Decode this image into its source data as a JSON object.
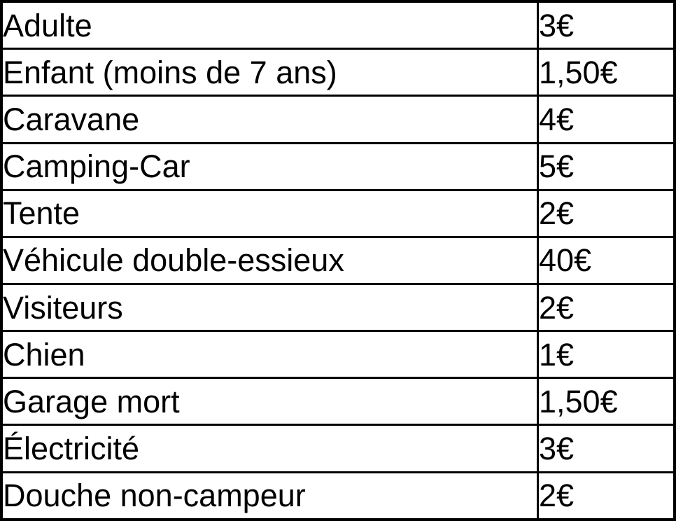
{
  "table": {
    "description": "Campsite price list (tarifs camping)",
    "currency_symbol": "€",
    "rows": [
      {
        "label": "Adulte",
        "price": "3€"
      },
      {
        "label": "Enfant (moins de 7 ans)",
        "price": "1,50€"
      },
      {
        "label": "Caravane",
        "price": "4€"
      },
      {
        "label": "Camping-Car",
        "price": "5€"
      },
      {
        "label": "Tente",
        "price": "2€"
      },
      {
        "label": "Véhicule double-essieux",
        "price": "40€"
      },
      {
        "label": "Visiteurs",
        "price": "2€"
      },
      {
        "label": "Chien",
        "price": "1€"
      },
      {
        "label": "Garage mort",
        "price": "1,50€"
      },
      {
        "label": "Électricité",
        "price": "3€"
      },
      {
        "label": "Douche non-campeur",
        "price": "2€"
      }
    ],
    "colors": {
      "border": "#000000",
      "background": "#ffffff",
      "text": "#000000"
    }
  }
}
